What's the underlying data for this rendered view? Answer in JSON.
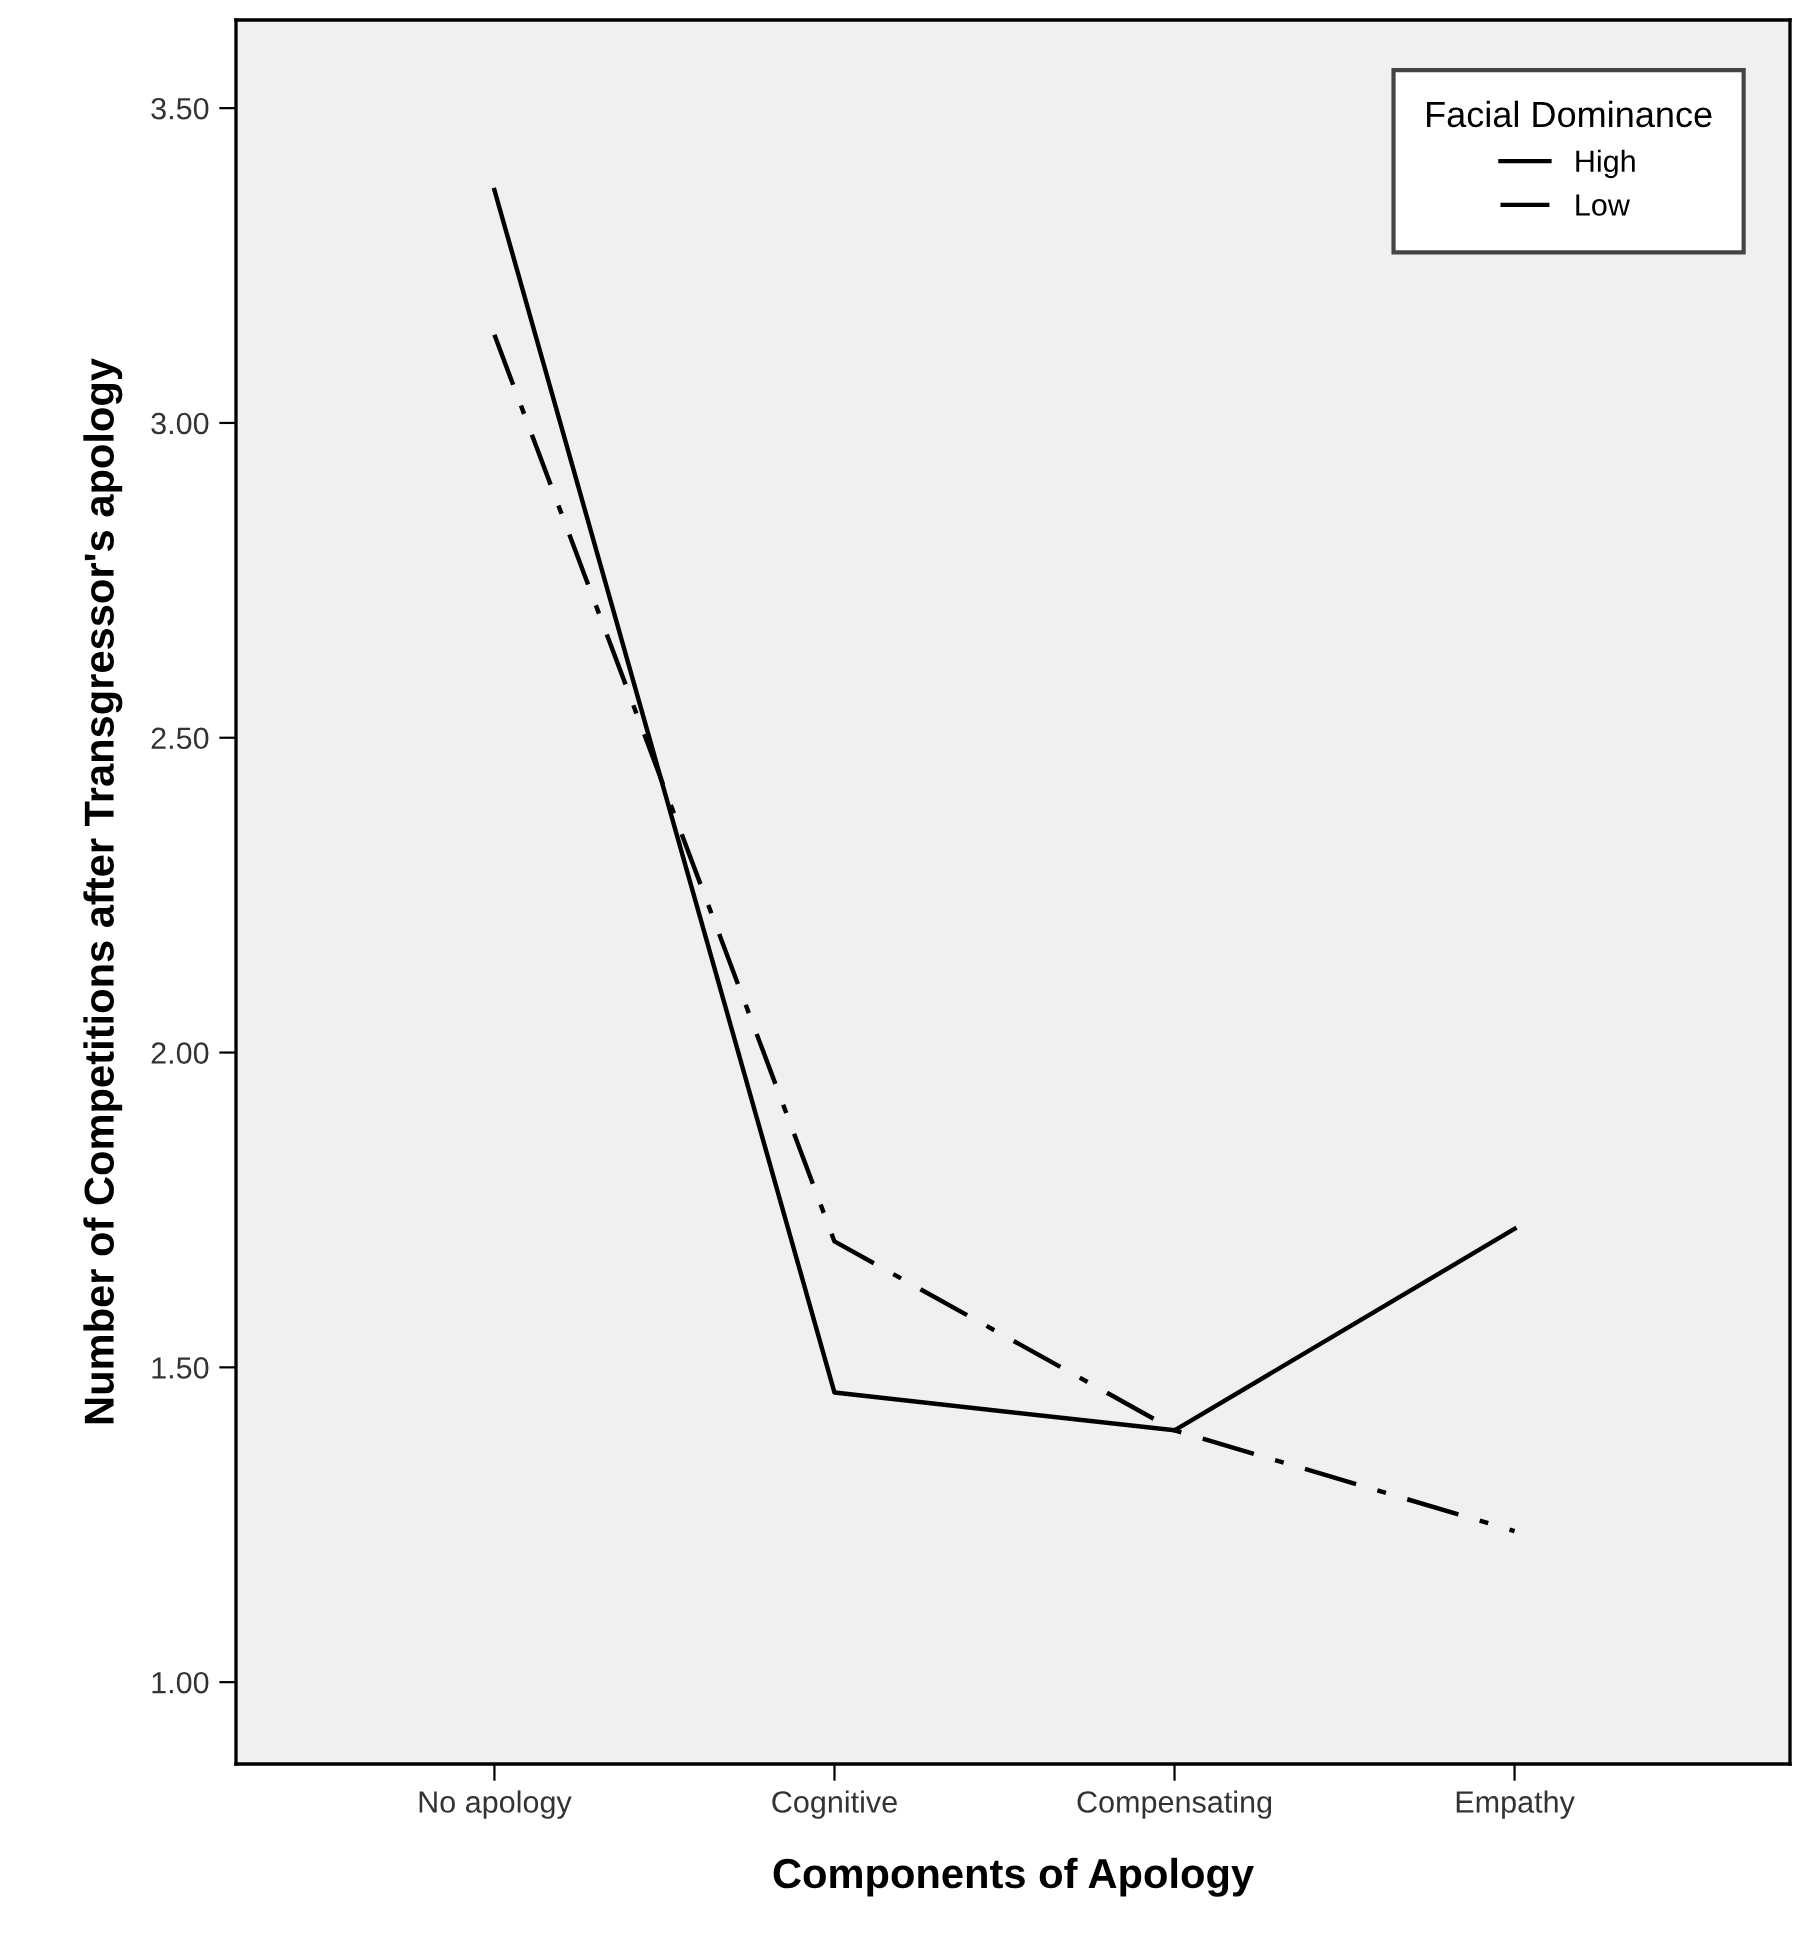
{
  "chart_data": {
    "type": "line",
    "xlabel": "Components of Apology",
    "ylabel": "Number of Competitions after Transgressor's apology",
    "legend_title": "Facial Dominance",
    "categories": [
      "No apology",
      "Cognitive",
      "Compensating",
      "Empathy"
    ],
    "series": [
      {
        "name": "High",
        "color": "#000000",
        "line_style": "solid",
        "values": [
          3.37,
          1.46,
          1.4,
          1.72
        ]
      },
      {
        "name": "Low",
        "color": "#000000",
        "line_style": "dashdot",
        "values": [
          3.14,
          1.7,
          1.4,
          1.24
        ]
      }
    ],
    "ylim": [
      0.87,
      3.64
    ],
    "yticks": [
      {
        "value": 1,
        "label": "1.00"
      },
      {
        "value": 1.5,
        "label": "1.50"
      },
      {
        "value": 2,
        "label": "2.00"
      },
      {
        "value": 2.5,
        "label": "2.50"
      },
      {
        "value": 3,
        "label": "3.00"
      },
      {
        "value": 3.5,
        "label": "3.50"
      }
    ],
    "grid": false,
    "legend": "top right",
    "marker": "none"
  }
}
